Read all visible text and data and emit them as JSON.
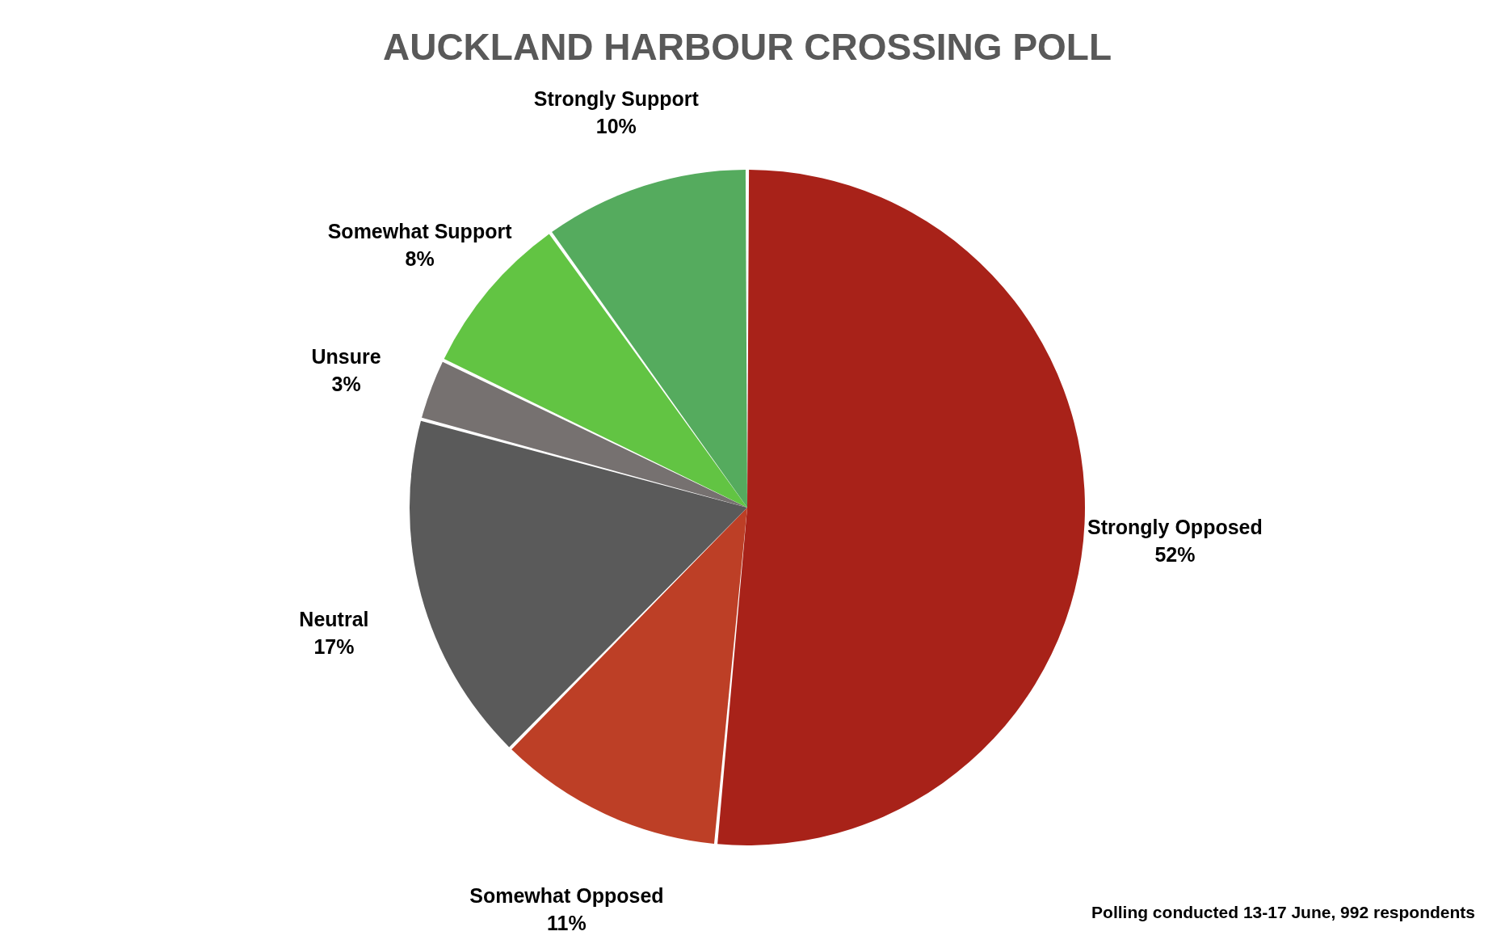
{
  "chart_data": {
    "type": "pie",
    "title": "AUCKLAND HARBOUR CROSSING POLL",
    "categories": [
      "Strongly Opposed",
      "Somewhat Opposed",
      "Neutral",
      "Unsure",
      "Somewhat Support",
      "Strongly Support"
    ],
    "values": [
      52,
      11,
      17,
      3,
      8,
      10
    ],
    "value_labels": [
      "52%",
      "11%",
      "17%",
      "3%",
      "8%",
      "10%"
    ],
    "colors": [
      "#a82219",
      "#bd3f26",
      "#5a5a5a",
      "#767170",
      "#62c443",
      "#55ab5e"
    ],
    "annotations": [
      "Polling conducted 13-17 June, 992 respondents"
    ]
  }
}
